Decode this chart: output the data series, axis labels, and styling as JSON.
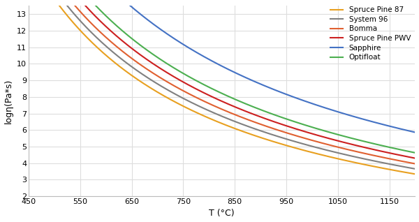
{
  "title": "",
  "xlabel": "T (°C)",
  "ylabel": "logη(Pa*s)",
  "xlim": [
    450,
    1200
  ],
  "ylim": [
    2,
    13.5
  ],
  "xticks": [
    450,
    550,
    650,
    750,
    850,
    950,
    1050,
    1150
  ],
  "yticks": [
    2,
    3,
    4,
    5,
    6,
    7,
    8,
    9,
    10,
    11,
    12,
    13
  ],
  "compositions": [
    {
      "name": "Spruce Pine 87",
      "color": "#E8A020",
      "A": -2.4,
      "B": 6200,
      "T0": 120
    },
    {
      "name": "System 96",
      "color": "#808080",
      "A": -2.4,
      "B": 6600,
      "T0": 110
    },
    {
      "name": "Bomma",
      "color": "#E06030",
      "A": -2.4,
      "B": 7000,
      "T0": 100
    },
    {
      "name": "Spruce Pine PWV",
      "color": "#CC2020",
      "A": -2.4,
      "B": 7400,
      "T0": 95
    },
    {
      "name": "Sapphire",
      "color": "#4472C4",
      "A": -2.4,
      "B": 9500,
      "T0": 50
    },
    {
      "name": "Optifloat",
      "color": "#4CAF50",
      "A": -2.4,
      "B": 7800,
      "T0": 90
    }
  ],
  "background_color": "#ffffff",
  "grid_color": "#dddddd",
  "figsize": [
    6.0,
    3.18
  ],
  "dpi": 100
}
